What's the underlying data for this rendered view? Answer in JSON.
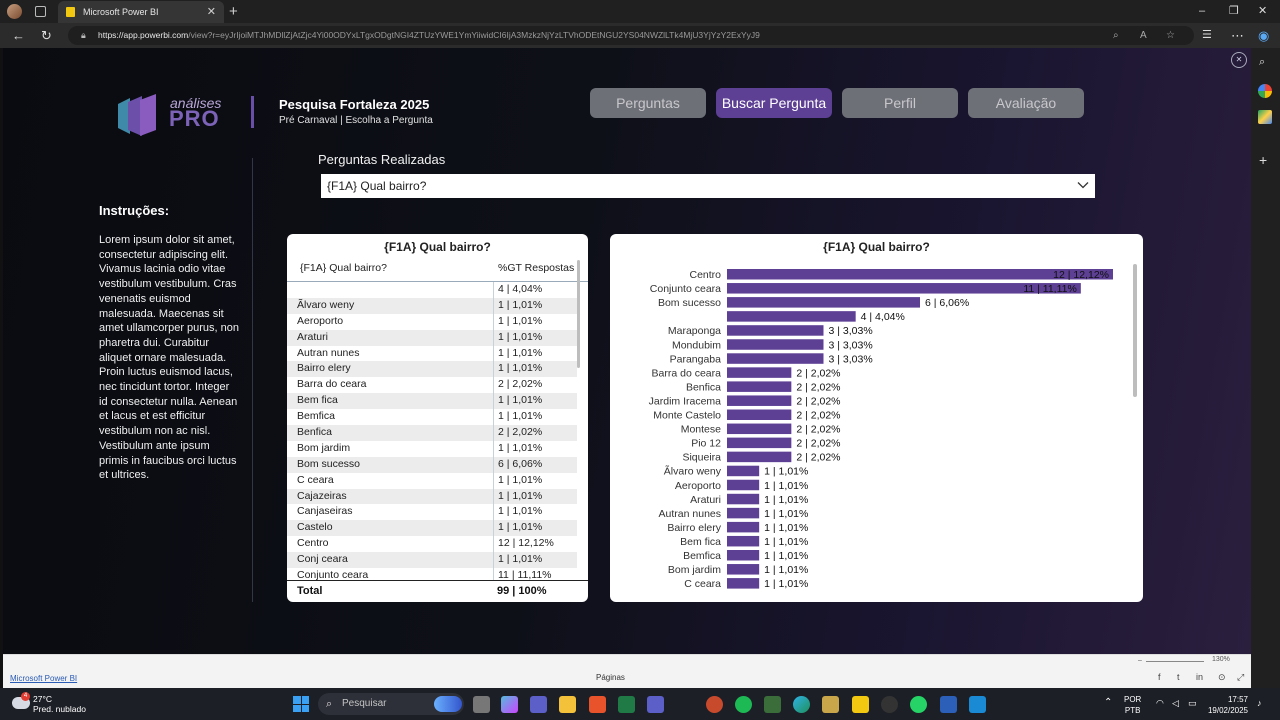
{
  "browser": {
    "tab_title": "Microsoft Power BI",
    "new_tab": "+",
    "url_host": "https://app.powerbi.com",
    "url_path": "/view?r=eyJrIjoiMTJhMDllZjAtZjc4Yi00ODYxLTgxODgtNGI4ZTUzYWE1YmYiiwidCI6IjA3MzkzNjYzLTVhODEtNGU2YS04NWZlLTk4MjU3YjYzY2ExYyJ9",
    "window_controls": [
      "–",
      "❐",
      "✕"
    ]
  },
  "report": {
    "logo_line1": "análises",
    "logo_line2": "PRO",
    "title": "Pesquisa Fortaleza 2025",
    "subtitle": "Pré Carnaval  |  Escolha a Pergunta",
    "nav": [
      {
        "label": "Perguntas",
        "active": false
      },
      {
        "label": "Buscar Pergunta",
        "active": true
      },
      {
        "label": "Perfil",
        "active": false
      },
      {
        "label": "Avaliação",
        "active": false
      }
    ],
    "questions_label": "Perguntas Realizadas",
    "selected_question": "{F1A} Qual bairro?",
    "instructions_title": "Instruções:",
    "instructions_body": "Lorem ipsum dolor sit amet, consectetur adipiscing elit. Vivamus lacinia odio vitae vestibulum vestibulum. Cras venenatis euismod malesuada. Maecenas sit amet ullamcorper purus, non pharetra dui. Curabitur aliquet ornare malesuada. Proin luctus euismod lacus, nec tincidunt tortor. Integer id consectetur nulla. Aenean et lacus et est efficitur vestibulum non ac nisl. Vestibulum ante ipsum primis in faucibus orci luctus et ultrices."
  },
  "table": {
    "title": "{F1A} Qual bairro?",
    "col1": "{F1A} Qual bairro?",
    "col2": "%GT Respostas",
    "rows": [
      [
        "",
        "4 | 4,04%"
      ],
      [
        "Ãlvaro weny",
        "1 | 1,01%"
      ],
      [
        "Aeroporto",
        "1 | 1,01%"
      ],
      [
        "Araturi",
        "1 | 1,01%"
      ],
      [
        "Autran nunes",
        "1 | 1,01%"
      ],
      [
        "Bairro elery",
        "1 | 1,01%"
      ],
      [
        "Barra do ceara",
        "2 | 2,02%"
      ],
      [
        "Bem fica",
        "1 | 1,01%"
      ],
      [
        "Bemfica",
        "1 | 1,01%"
      ],
      [
        "Benfica",
        "2 | 2,02%"
      ],
      [
        "Bom jardim",
        "1 | 1,01%"
      ],
      [
        "Bom sucesso",
        "6 | 6,06%"
      ],
      [
        "C ceara",
        "1 | 1,01%"
      ],
      [
        "Cajazeiras",
        "1 | 1,01%"
      ],
      [
        "Canjaseiras",
        "1 | 1,01%"
      ],
      [
        "Castelo",
        "1 | 1,01%"
      ],
      [
        "Centro",
        "12 | 12,12%"
      ],
      [
        "Conj ceara",
        "1 | 1,01%"
      ],
      [
        "Conjunto ceara",
        "11 | 11,11%"
      ]
    ],
    "total_label": "Total",
    "total_value": "99 | 100%"
  },
  "chart_data": {
    "type": "bar",
    "orientation": "horizontal",
    "title": "{F1A} Qual bairro?",
    "categories": [
      "Centro",
      "Conjunto ceara",
      "Bom sucesso",
      "",
      "Maraponga",
      "Mondubim",
      "Parangaba",
      "Barra do ceara",
      "Benfica",
      "Jardim Iracema",
      "Monte Castelo",
      "Montese",
      "Pio 12",
      "Siqueira",
      "Ãlvaro weny",
      "Aeroporto",
      "Araturi",
      "Autran nunes",
      "Bairro elery",
      "Bem fica",
      "Bemfica",
      "Bom jardim",
      "C ceara"
    ],
    "values": [
      12,
      11,
      6,
      4,
      3,
      3,
      3,
      2,
      2,
      2,
      2,
      2,
      2,
      2,
      1,
      1,
      1,
      1,
      1,
      1,
      1,
      1,
      1
    ],
    "labels": [
      "12 | 12,12%",
      "11 | 11,11%",
      "6 | 6,06%",
      "4 | 4,04%",
      "3 | 3,03%",
      "3 | 3,03%",
      "3 | 3,03%",
      "2 | 2,02%",
      "2 | 2,02%",
      "2 | 2,02%",
      "2 | 2,02%",
      "2 | 2,02%",
      "2 | 2,02%",
      "2 | 2,02%",
      "1 | 1,01%",
      "1 | 1,01%",
      "1 | 1,01%",
      "1 | 1,01%",
      "1 | 1,01%",
      "1 | 1,01%",
      "1 | 1,01%",
      "1 | 1,01%",
      "1 | 1,01%"
    ],
    "xlim": [
      0,
      12
    ],
    "bar_color": "#5d3f94",
    "grid": false
  },
  "footer": {
    "brand": "Microsoft Power BI",
    "pages": "Páginas",
    "zoom": "130%"
  },
  "taskbar": {
    "badge": "4",
    "temp": "27°C",
    "weather": "Pred. nublado",
    "search_placeholder": "Pesquisar",
    "lang1": "POR",
    "lang2": "PTB",
    "time": "17:57",
    "date": "19/02/2025"
  },
  "colors": {
    "accent": "#5d3f94",
    "button_inactive": "#6e7078"
  }
}
